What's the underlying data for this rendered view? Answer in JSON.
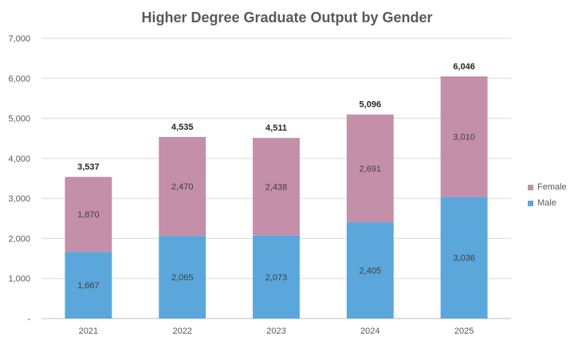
{
  "chart_data": {
    "type": "bar",
    "stacked": true,
    "title": "Higher Degree Graduate Output by Gender",
    "categories": [
      "2021",
      "2022",
      "2023",
      "2024",
      "2025"
    ],
    "series": [
      {
        "name": "Male",
        "color": "#5BA7DB",
        "values": [
          1667,
          2065,
          2073,
          2405,
          3036
        ],
        "labels": [
          "1,667",
          "2,065",
          "2,073",
          "2,405",
          "3,036"
        ]
      },
      {
        "name": "Female",
        "color": "#C48FA9",
        "values": [
          1870,
          2470,
          2438,
          2691,
          3010
        ],
        "labels": [
          "1,870",
          "2,470",
          "2,438",
          "2,691",
          "3,010"
        ]
      }
    ],
    "totals": [
      "3,537",
      "4,535",
      "4,511",
      "5,096",
      "6,046"
    ],
    "ylim": [
      0,
      7000
    ],
    "yticks": [
      "-",
      "1,000",
      "2,000",
      "3,000",
      "4,000",
      "5,000",
      "6,000",
      "7,000"
    ],
    "grid": true,
    "legend_position": "right"
  }
}
